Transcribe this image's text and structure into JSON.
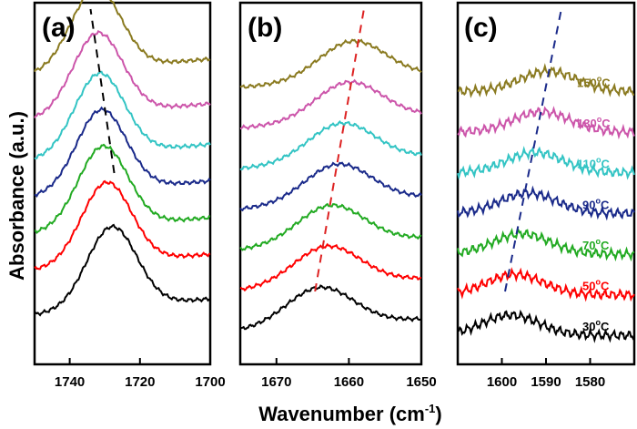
{
  "chart_data": {
    "type": "line",
    "ylabel": "Absorbance (a.u.)",
    "xlabel_main": "Wavenumber (cm",
    "xlabel_sup": "-1",
    "xlabel_end": ")",
    "series_colors": [
      "#000000",
      "#ff0000",
      "#22aa22",
      "#1a2a8a",
      "#33c4c4",
      "#cc55aa",
      "#8a7a20"
    ],
    "temperatures": [
      {
        "value": "30",
        "unit": "C",
        "color": "#000000"
      },
      {
        "value": "50",
        "unit": "C",
        "color": "#ff0000"
      },
      {
        "value": "70",
        "unit": "C",
        "color": "#22aa22"
      },
      {
        "value": "90",
        "unit": "C",
        "color": "#1a2a8a"
      },
      {
        "value": "110",
        "unit": "C",
        "color": "#33c4c4"
      },
      {
        "value": "130",
        "unit": "C",
        "color": "#cc55aa"
      },
      {
        "value": "150",
        "unit": "C",
        "color": "#8a7a20"
      }
    ],
    "panels": [
      {
        "label": "(a)",
        "xlim": [
          1750,
          1700
        ],
        "ticks": [
          1740,
          1720,
          1700
        ],
        "tick_labels": [
          "1740",
          "1720",
          "1700"
        ],
        "peak_positions": [
          1728,
          1729.5,
          1730.5,
          1731,
          1731.5,
          1732,
          1732.5
        ],
        "guide_color": "#000000",
        "offsets": [
          0.55,
          1.1,
          1.55,
          2.0,
          2.45,
          2.95,
          3.5
        ],
        "width": 10,
        "amplitude": 2.0,
        "baseline_slope": 0.02
      },
      {
        "label": "(b)",
        "xlim": [
          1675,
          1650
        ],
        "ticks": [
          1670,
          1660,
          1650
        ],
        "tick_labels": [
          "1670",
          "1660",
          "1650"
        ],
        "peak_positions": [
          1664,
          1663,
          1662.5,
          1661.5,
          1661,
          1660,
          1659.5
        ],
        "guide_color": "#dd2222",
        "offsets": [
          0.35,
          0.85,
          1.35,
          1.85,
          2.35,
          2.85,
          3.35
        ],
        "width": 6.5,
        "amplitude": 0.95,
        "baseline_slope": 0.015
      },
      {
        "label": "(c)",
        "xlim": [
          1610,
          1570
        ],
        "ticks": [
          1600,
          1590,
          1580
        ],
        "tick_labels": [
          "1600",
          "1590",
          "1580"
        ],
        "peak_positions": [
          1598,
          1597,
          1595.5,
          1594,
          1592.5,
          1591,
          1589.5
        ],
        "guide_color": "#1a2a8a",
        "offsets": [
          0.3,
          0.8,
          1.3,
          1.8,
          2.3,
          2.8,
          3.3
        ],
        "width": 9,
        "amplitude": 0.5,
        "baseline_slope": 0.0
      }
    ]
  }
}
